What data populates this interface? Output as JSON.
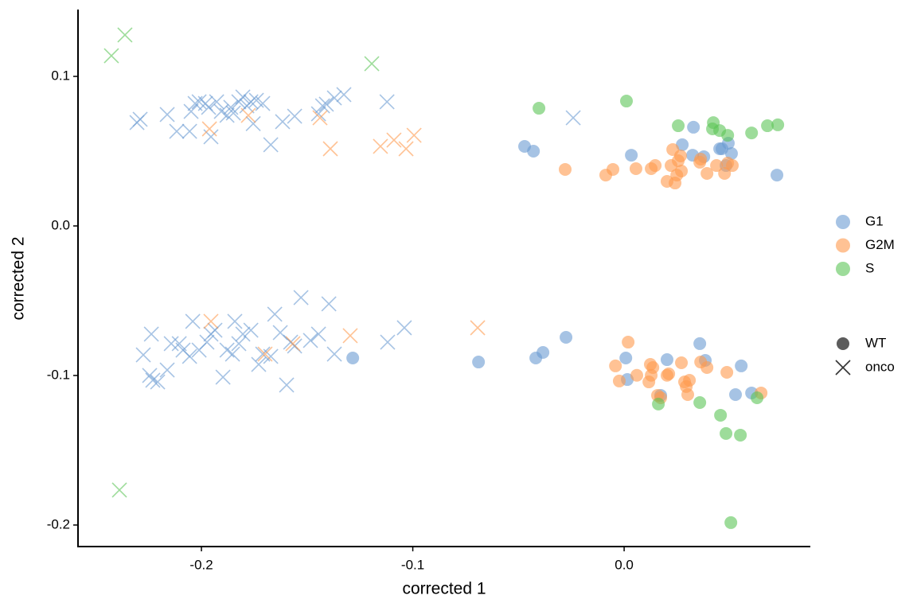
{
  "chart_data": {
    "type": "scatter",
    "x_label": "corrected 1",
    "y_label": "corrected 2",
    "xlim": [
      -0.2584,
      0.0881
    ],
    "ylim": [
      -0.2144,
      0.1447
    ],
    "xticks": [
      -0.2,
      -0.1,
      {
        "value": 0,
        "label": "0.0"
      }
    ],
    "yticks": [
      -0.2,
      -0.1,
      {
        "value": 0,
        "label": "0.0"
      },
      0.1
    ],
    "opacity": 0.6,
    "color_legend": [
      {
        "name": "G1",
        "color": "#6b9bd2"
      },
      {
        "name": "G2M",
        "color": "#ff9a4d"
      },
      {
        "name": "S",
        "color": "#5cc456"
      }
    ],
    "shape_legend": [
      {
        "name": "WT",
        "marker": "circle"
      },
      {
        "name": "onco",
        "marker": "x"
      }
    ],
    "series": [
      {
        "color": "#6b9bd2",
        "marker": "x",
        "x": [
          -0.2305,
          -0.229,
          -0.2162,
          -0.2117,
          -0.2056,
          -0.2049,
          -0.203,
          -0.2011,
          -0.1981,
          -0.1966,
          -0.1955,
          -0.1928,
          -0.1906,
          -0.1879,
          -0.1861,
          -0.1849,
          -0.1823,
          -0.1804,
          -0.1785,
          -0.1766,
          -0.1755,
          -0.174,
          -0.171,
          -0.1672,
          -0.1616,
          -0.1559,
          -0.1446,
          -0.1427,
          -0.1409,
          -0.1371,
          -0.1326,
          -0.1122,
          -0.0241,
          -0.2275,
          -0.2237,
          -0.2245,
          -0.223,
          -0.2207,
          -0.2162,
          -0.2143,
          -0.2105,
          -0.2087,
          -0.2056,
          -0.2041,
          -0.2011,
          -0.1974,
          -0.1955,
          -0.1936,
          -0.1898,
          -0.1879,
          -0.1853,
          -0.1842,
          -0.1823,
          -0.1804,
          -0.1766,
          -0.1729,
          -0.171,
          -0.1672,
          -0.1653,
          -0.1627,
          -0.1597,
          -0.1578,
          -0.1559,
          -0.1529,
          -0.1484,
          -0.1446,
          -0.1397,
          -0.1371,
          -0.1119,
          -0.104
        ],
        "values": [
          0.0691,
          0.0713,
          0.0745,
          0.0633,
          0.0633,
          0.0766,
          0.0819,
          0.083,
          0.0819,
          0.0793,
          0.0596,
          0.083,
          0.0766,
          0.074,
          0.0793,
          0.0755,
          0.083,
          0.0862,
          0.0803,
          0.083,
          0.0684,
          0.084,
          0.0819,
          0.0543,
          0.0697,
          0.0734,
          0.075,
          0.0803,
          0.0814,
          0.0856,
          0.0878,
          0.083,
          0.0723,
          -0.0862,
          -0.0723,
          -0.1,
          -0.1032,
          -0.1043,
          -0.0963,
          -0.0787,
          -0.0787,
          -0.083,
          -0.0872,
          -0.0638,
          -0.083,
          -0.0777,
          -0.0723,
          -0.0697,
          -0.1011,
          -0.083,
          -0.0857,
          -0.0638,
          -0.0787,
          -0.0723,
          -0.0697,
          -0.0926,
          -0.0857,
          -0.0872,
          -0.059,
          -0.0713,
          -0.1064,
          -0.0777,
          -0.0803,
          -0.0479,
          -0.0766,
          -0.0723,
          -0.0521,
          -0.0857,
          -0.0777,
          -0.0681
        ]
      },
      {
        "color": "#ff9a4d",
        "marker": "x",
        "x": [
          -0.1962,
          -0.1778,
          -0.1439,
          -0.139,
          -0.1153,
          -0.1089,
          -0.1032,
          -0.0994,
          -0.1955,
          -0.1699,
          -0.1567,
          -0.1296,
          -0.0693
        ],
        "values": [
          0.0649,
          0.0739,
          0.0723,
          0.0516,
          0.0532,
          0.0574,
          0.0516,
          0.0606,
          -0.0638,
          -0.0857,
          -0.0787,
          -0.0734,
          -0.0681
        ]
      },
      {
        "color": "#5cc456",
        "marker": "x",
        "x": [
          -0.2426,
          -0.2362,
          -0.1194,
          -0.2388
        ],
        "values": [
          0.1138,
          0.1277,
          0.1085,
          -0.1766
        ]
      },
      {
        "color": "#6b9bd2",
        "marker": "circle",
        "x": [
          -0.0471,
          -0.0429,
          0.0034,
          0.0275,
          0.0328,
          0.0324,
          0.0377,
          0.0452,
          0.0463,
          0.0493,
          0.0482,
          0.0508,
          0.0723,
          -0.1284,
          -0.0689,
          -0.0418,
          -0.0384,
          -0.0275,
          0.0008,
          0.0015,
          0.0173,
          0.0203,
          0.0358,
          0.0384,
          0.0554,
          0.0527,
          0.0603
        ],
        "values": [
          0.0532,
          0.05,
          0.0473,
          0.0543,
          0.066,
          0.0473,
          0.0463,
          0.0516,
          0.0516,
          0.0553,
          0.0404,
          0.0484,
          0.034,
          -0.0883,
          -0.091,
          -0.0883,
          -0.0846,
          -0.0745,
          -0.0883,
          -0.1027,
          -0.1133,
          -0.0894,
          -0.0787,
          -0.0899,
          -0.0936,
          -0.1128,
          -0.1117
        ]
      },
      {
        "color": "#ff9a4d",
        "marker": "circle",
        "x": [
          -0.0279,
          -0.0087,
          -0.0053,
          0.0056,
          0.0128,
          0.0147,
          0.0203,
          0.0222,
          0.023,
          0.0249,
          0.0256,
          0.0267,
          0.0271,
          0.0362,
          0.0358,
          0.0392,
          0.0437,
          0.0475,
          0.049,
          0.0512,
          0.0241,
          -0.0041,
          -0.0023,
          0.0019,
          0.006,
          0.0124,
          0.0128,
          0.0136,
          0.0117,
          0.0203,
          0.0211,
          0.0286,
          0.0271,
          0.0294,
          0.0309,
          0.0301,
          0.0362,
          0.0392,
          0.0486,
          0.0648,
          0.0173,
          0.0158
        ],
        "values": [
          0.0378,
          0.034,
          0.0378,
          0.0383,
          0.0383,
          0.0404,
          0.0298,
          0.0404,
          0.0511,
          0.034,
          0.0436,
          0.0468,
          0.0367,
          0.0447,
          0.0426,
          0.0351,
          0.0404,
          0.0351,
          0.042,
          0.0404,
          0.0287,
          -0.0936,
          -0.1037,
          -0.0777,
          -0.0999,
          -0.0926,
          -0.0999,
          -0.0947,
          -0.1043,
          -0.0999,
          -0.0989,
          -0.1043,
          -0.0915,
          -0.1074,
          -0.1032,
          -0.1128,
          -0.091,
          -0.0947,
          -0.0979,
          -0.1117,
          -0.1149,
          -0.1133
        ]
      },
      {
        "color": "#5cc456",
        "marker": "circle",
        "x": [
          -0.0403,
          0.0011,
          0.0256,
          0.0422,
          0.0418,
          0.0452,
          0.049,
          0.0603,
          0.0678,
          0.0727,
          0.0162,
          0.0358,
          0.0456,
          0.0482,
          0.055,
          0.0629,
          0.0505
        ],
        "values": [
          0.0787,
          0.0835,
          0.067,
          0.0691,
          0.0649,
          0.0638,
          0.0606,
          0.0622,
          0.067,
          0.0676,
          -0.1191,
          -0.1181,
          -0.1266,
          -0.1388,
          -0.1399,
          -0.1149,
          -0.1984
        ]
      }
    ]
  }
}
